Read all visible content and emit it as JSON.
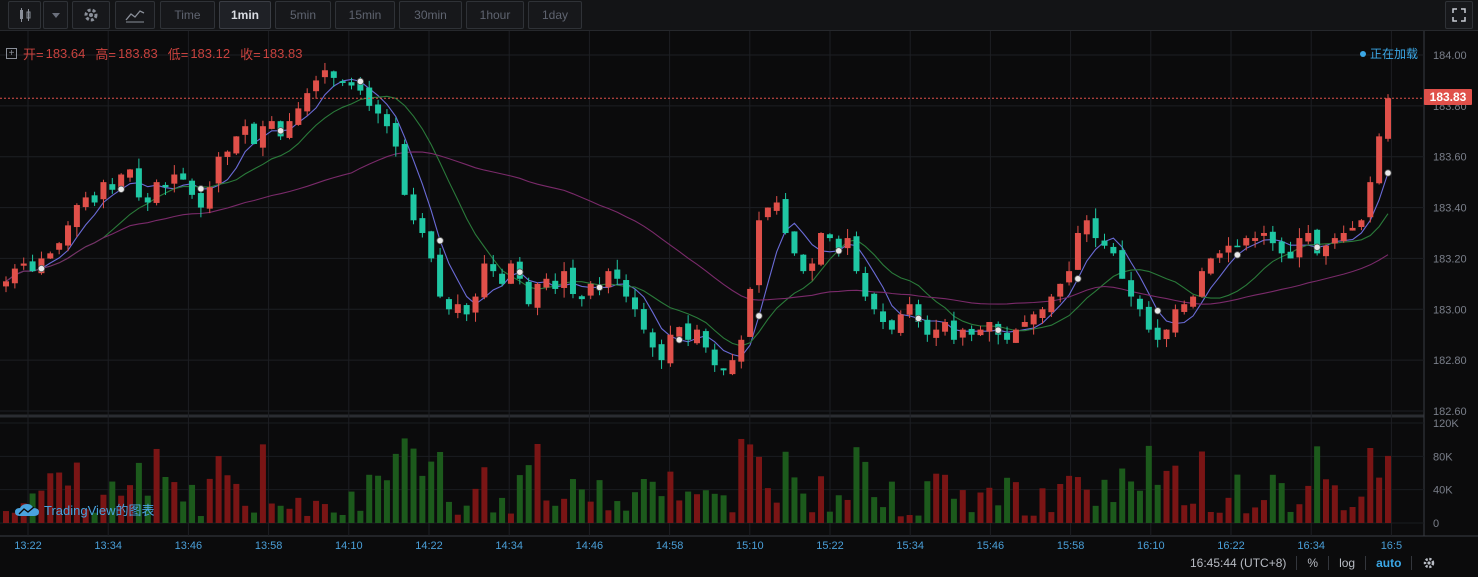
{
  "toolbar": {
    "timeframes": [
      "Time",
      "1min",
      "5min",
      "15min",
      "30min",
      "1hour",
      "1day"
    ],
    "active": "1min",
    "icons": [
      "candlestick-icon",
      "chevron-down-icon",
      "gear-icon",
      "indicators-icon",
      "fullscreen-icon"
    ]
  },
  "legend": {
    "open_label": "开=",
    "open": "183.64",
    "high_label": "高=",
    "high": "183.83",
    "low_label": "低=",
    "low": "183.12",
    "close_label": "收=",
    "close": "183.83"
  },
  "status": {
    "loading": "正在加载"
  },
  "last_price_tag": "183.83",
  "watermark": "TradingView的图表",
  "bottom_bar": {
    "time": "16:45:44 (UTC+8)",
    "percent": "%",
    "log": "log",
    "auto": "auto"
  },
  "colors": {
    "up": "#e0504a",
    "down": "#1fc7a3",
    "vol_up": "#7a1515",
    "vol_down": "#1c5a1c",
    "ma_fast": "#6a6bd6",
    "ma_mid": "#2a7a3a",
    "ma_slow": "#7a2a6a",
    "accent": "#3ba7e6"
  },
  "chart_data": {
    "type": "candlestick",
    "title": "",
    "price_axis": {
      "ticks": [
        184.0,
        183.8,
        183.6,
        183.4,
        183.2,
        183.0,
        182.8,
        182.6
      ],
      "ylim": [
        182.6,
        184.0
      ]
    },
    "volume_axis": {
      "ticks": [
        "120K",
        "80K",
        "40K",
        "0"
      ],
      "max": 120000
    },
    "time_axis": {
      "ticks": [
        "13:22",
        "13:34",
        "13:46",
        "13:58",
        "14:10",
        "14:22",
        "14:34",
        "14:46",
        "14:58",
        "15:10",
        "15:22",
        "15:34",
        "15:46",
        "15:58",
        "16:10",
        "16:22",
        "16:34",
        "16:5"
      ]
    },
    "close": [
      183.11,
      183.16,
      183.18,
      183.15,
      183.2,
      183.22,
      183.26,
      183.33,
      183.41,
      183.44,
      183.42,
      183.5,
      183.47,
      183.53,
      183.55,
      183.44,
      183.42,
      183.5,
      183.48,
      183.53,
      183.51,
      183.45,
      183.4,
      183.48,
      183.6,
      183.62,
      183.68,
      183.72,
      183.65,
      183.72,
      183.74,
      183.68,
      183.74,
      183.79,
      183.85,
      183.9,
      183.94,
      183.91,
      183.89,
      183.88,
      183.86,
      183.8,
      183.77,
      183.72,
      183.64,
      183.45,
      183.35,
      183.3,
      183.2,
      183.05,
      183.0,
      183.02,
      182.98,
      183.05,
      183.18,
      183.15,
      183.1,
      183.18,
      183.12,
      183.02,
      183.1,
      183.12,
      183.08,
      183.15,
      183.06,
      183.04,
      183.1,
      183.08,
      183.15,
      183.12,
      183.05,
      183.0,
      182.92,
      182.85,
      182.8,
      182.9,
      182.93,
      182.88,
      182.92,
      182.85,
      182.78,
      182.76,
      182.8,
      182.88,
      183.08,
      183.35,
      183.4,
      183.42,
      183.3,
      183.22,
      183.15,
      183.18,
      183.3,
      183.28,
      183.24,
      183.28,
      183.15,
      183.05,
      183.0,
      182.95,
      182.92,
      182.98,
      183.02,
      182.95,
      182.9,
      182.92,
      182.95,
      182.88,
      182.92,
      182.9,
      182.92,
      182.95,
      182.9,
      182.88,
      182.92,
      182.95,
      182.98,
      183.0,
      183.05,
      183.1,
      183.15,
      183.3,
      183.35,
      183.28,
      183.25,
      183.22,
      183.12,
      183.05,
      183.0,
      182.92,
      182.88,
      182.92,
      183.0,
      183.02,
      183.05,
      183.15,
      183.2,
      183.22,
      183.25,
      183.25,
      183.28,
      183.28,
      183.3,
      183.26,
      183.22,
      183.2,
      183.28,
      183.3,
      183.22,
      183.25,
      183.28,
      183.3,
      183.32,
      183.35,
      183.5,
      183.68,
      183.83
    ]
  }
}
